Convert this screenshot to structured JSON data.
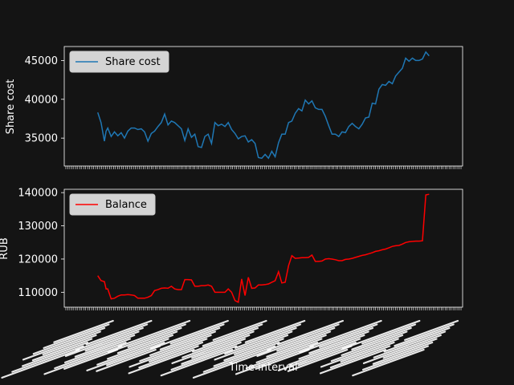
{
  "chart_data": [
    {
      "type": "line",
      "ylabel": "Share cost",
      "ylim": [
        31400,
        46800
      ],
      "yticks": [
        35000,
        40000,
        45000
      ],
      "ytick_labels": [
        "35000",
        "40000",
        "45000"
      ],
      "grid": false,
      "legend_position": "upper-left",
      "series": [
        {
          "name": "Share cost",
          "color": "#1f77b4",
          "x": [
            0,
            2,
            4,
            5,
            6,
            8,
            10,
            12,
            14,
            16,
            18,
            20,
            22,
            24,
            26,
            28,
            30,
            32,
            34,
            36,
            38,
            40,
            42,
            44,
            46,
            48,
            50,
            52,
            54,
            56,
            58,
            60,
            62,
            64,
            66,
            68,
            70,
            72,
            74,
            76,
            78,
            80,
            82,
            84,
            86,
            88,
            90,
            92,
            94,
            96,
            98,
            100,
            102,
            104,
            106,
            108,
            110,
            112,
            114,
            116,
            118,
            120,
            122,
            124,
            126,
            128,
            130,
            132,
            134,
            136,
            138,
            140,
            142,
            144,
            146,
            148,
            150,
            152,
            154,
            156,
            158,
            160,
            162,
            164,
            166,
            168,
            170,
            172,
            174,
            176,
            178,
            180,
            182,
            184,
            186,
            188,
            190,
            192,
            194,
            196,
            198
          ],
          "values": [
            38300,
            37000,
            34600,
            35900,
            36300,
            35200,
            35800,
            35300,
            35700,
            35000,
            35900,
            36300,
            36300,
            36100,
            36200,
            35800,
            34600,
            35600,
            35900,
            36500,
            37000,
            38100,
            36700,
            37200,
            37000,
            36600,
            36200,
            34700,
            36200,
            35100,
            35500,
            33900,
            33800,
            35200,
            35500,
            34300,
            37000,
            36600,
            36800,
            36500,
            37000,
            36100,
            35600,
            34900,
            35200,
            35300,
            34500,
            34800,
            34300,
            32500,
            32400,
            32900,
            32400,
            33300,
            32600,
            34400,
            35500,
            35500,
            37000,
            37200,
            38200,
            38800,
            38500,
            39900,
            39400,
            39800,
            38900,
            38700,
            38700,
            37800,
            36600,
            35500,
            35500,
            35200,
            35800,
            35700,
            36500,
            36900,
            36500,
            36200,
            36800,
            37600,
            37700,
            39500,
            39400,
            41300,
            41900,
            41800,
            42300,
            42000,
            43000,
            43500,
            44000,
            45300,
            44900,
            45300,
            45000,
            45000,
            45200,
            46100,
            45600
          ]
        }
      ]
    },
    {
      "type": "line",
      "ylabel": "RUB",
      "xlabel": "Time interval",
      "ylim": [
        105500,
        141000
      ],
      "yticks": [
        110000,
        120000,
        130000,
        140000
      ],
      "ytick_labels": [
        "110000",
        "120000",
        "130000",
        "140000"
      ],
      "grid": false,
      "legend_position": "upper-left",
      "series": [
        {
          "name": "Balance",
          "color": "#ff0000",
          "x": [
            0,
            2,
            4,
            5,
            6,
            8,
            10,
            12,
            14,
            16,
            18,
            20,
            22,
            24,
            26,
            28,
            30,
            32,
            34,
            36,
            38,
            40,
            42,
            44,
            46,
            48,
            50,
            52,
            54,
            56,
            58,
            60,
            62,
            64,
            66,
            68,
            70,
            72,
            74,
            76,
            78,
            80,
            82,
            84,
            86,
            88,
            90,
            92,
            94,
            96,
            98,
            100,
            102,
            104,
            106,
            108,
            110,
            112,
            114,
            116,
            118,
            120,
            122,
            124,
            126,
            128,
            130,
            132,
            134,
            136,
            138,
            140,
            142,
            144,
            146,
            148,
            150,
            152,
            154,
            156,
            158,
            160,
            162,
            164,
            166,
            168,
            170,
            172,
            174,
            176,
            178,
            180,
            182,
            184,
            186,
            188,
            190,
            192,
            194,
            196,
            198
          ],
          "values": [
            115000,
            113500,
            113200,
            111000,
            111000,
            108000,
            108200,
            108800,
            109200,
            109200,
            109300,
            109200,
            109000,
            108200,
            108200,
            108200,
            108500,
            109000,
            110500,
            110800,
            111200,
            111300,
            111200,
            111800,
            111000,
            110800,
            110800,
            113800,
            113800,
            113700,
            111800,
            111800,
            112000,
            112000,
            112200,
            111800,
            110000,
            110000,
            110000,
            110000,
            111000,
            110000,
            107500,
            107000,
            114000,
            109000,
            114500,
            111200,
            111300,
            112200,
            112200,
            112300,
            112500,
            113000,
            113500,
            116200,
            112800,
            113000,
            118000,
            121000,
            120200,
            120300,
            120400,
            120400,
            120500,
            121200,
            119300,
            119300,
            119400,
            120000,
            120100,
            120000,
            119800,
            119500,
            119500,
            119900,
            120000,
            120200,
            120500,
            120800,
            121100,
            121300,
            121600,
            121900,
            122300,
            122500,
            122800,
            123000,
            123400,
            123800,
            124000,
            124100,
            124500,
            125000,
            125200,
            125300,
            125400,
            125400,
            125500,
            139300,
            139500
          ]
        }
      ]
    }
  ]
}
